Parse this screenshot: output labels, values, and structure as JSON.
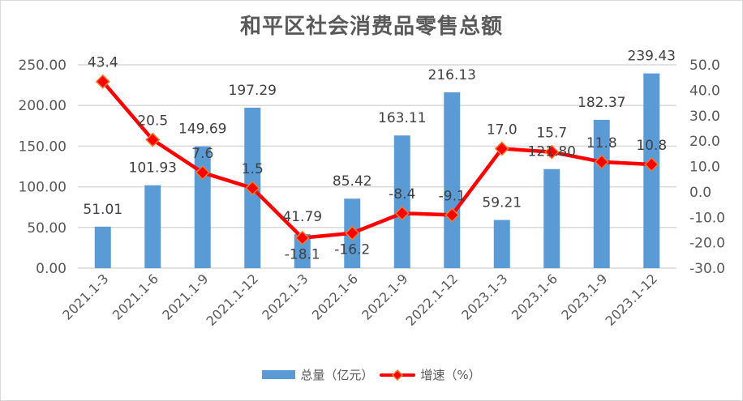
{
  "chart_data": {
    "type": "bar+line",
    "title": "和平区社会消费品零售总额",
    "categories": [
      "2021.1-3",
      "2021.1-6",
      "2021.1-9",
      "2021.1-12",
      "2022.1-3",
      "2022.1-6",
      "2022.1-9",
      "2022.1-12",
      "2023.1-3",
      "2023.1-6",
      "2023.1-9",
      "2023.1-12"
    ],
    "series": [
      {
        "name": "总量（亿元）",
        "type": "bar",
        "axis": "left",
        "color": "#5b9bd5",
        "values": [
          51.01,
          101.93,
          149.69,
          197.29,
          41.79,
          85.42,
          163.11,
          216.13,
          59.21,
          121.8,
          182.37,
          239.43
        ],
        "labels": [
          "51.01",
          "101.93",
          "149.69",
          "197.29",
          "41.79",
          "85.42",
          "163.11",
          "216.13",
          "59.21",
          "121.80",
          "182.37",
          "239.43"
        ]
      },
      {
        "name": "增速（%）",
        "type": "line",
        "axis": "right",
        "color": "#ff0000",
        "marker": "diamond",
        "marker_edge": "#ed7d31",
        "values": [
          43.4,
          20.5,
          7.6,
          1.5,
          -18.1,
          -16.2,
          -8.4,
          -9.1,
          17.0,
          15.7,
          11.8,
          10.8
        ],
        "labels": [
          "43.4",
          "20.5",
          "7.6",
          "1.5",
          "-18.1",
          "-16.2",
          "-8.4",
          "-9.1",
          "17.0",
          "15.7",
          "11.8",
          "10.8"
        ]
      }
    ],
    "left_axis": {
      "ylim": [
        0,
        250
      ],
      "ticks": [
        "0.00",
        "50.00",
        "100.00",
        "150.00",
        "200.00",
        "250.00"
      ]
    },
    "right_axis": {
      "ylim": [
        -30,
        50
      ],
      "ticks": [
        "-30.0",
        "-20.0",
        "-10.0",
        "0.0",
        "10.0",
        "20.0",
        "30.0",
        "40.0",
        "50.0"
      ]
    },
    "grid": true,
    "legend_position": "bottom"
  },
  "legend": {
    "bar_label": "总量（亿元）",
    "line_label": "增速（%）"
  }
}
